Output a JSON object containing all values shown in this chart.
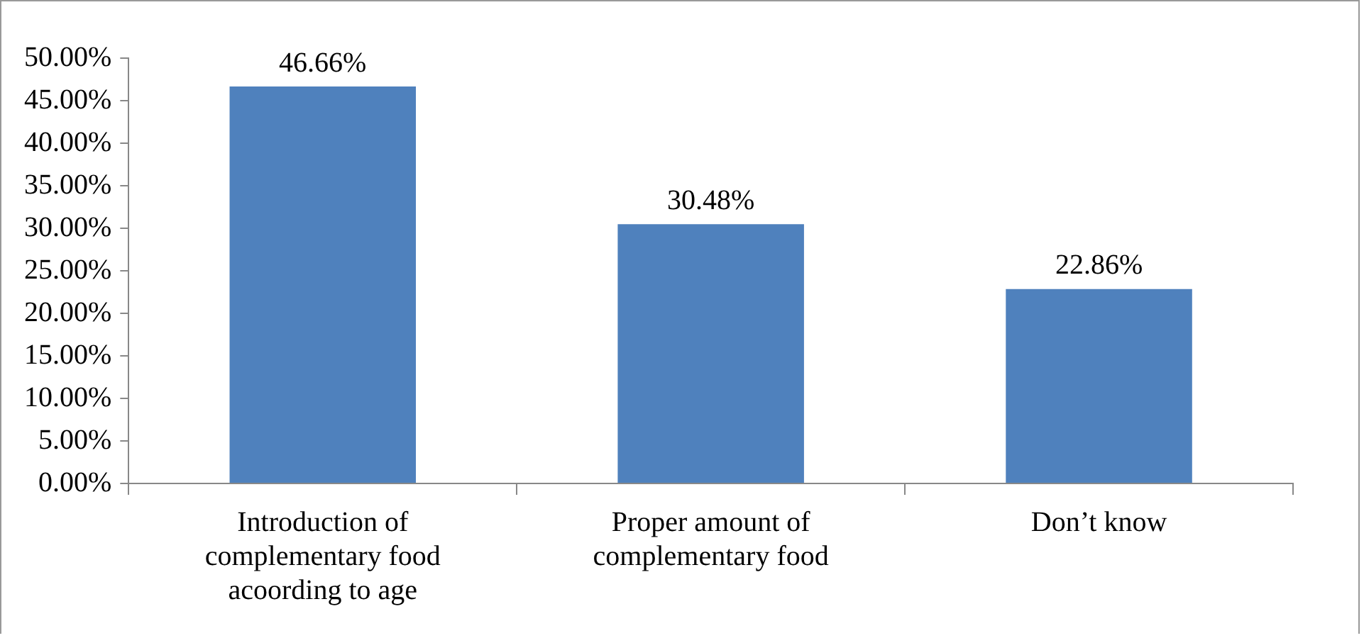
{
  "chart_data": {
    "type": "bar",
    "categories": [
      "Introduction of complementary food acoording to age",
      "Proper amount of complementary food",
      "Don’t know"
    ],
    "values": [
      46.66,
      30.48,
      22.86
    ],
    "value_labels": [
      "46.66%",
      "30.48%",
      "22.86%"
    ],
    "color": "#4f81bd",
    "ylim": [
      0,
      50
    ],
    "yticks": [
      {
        "value": 0,
        "label": "0.00%"
      },
      {
        "value": 5,
        "label": "5.00%"
      },
      {
        "value": 10,
        "label": "10.00%"
      },
      {
        "value": 15,
        "label": "15.00%"
      },
      {
        "value": 20,
        "label": "20.00%"
      },
      {
        "value": 25,
        "label": "25.00%"
      },
      {
        "value": 30,
        "label": "30.00%"
      },
      {
        "value": 35,
        "label": "35.00%"
      },
      {
        "value": 40,
        "label": "40.00%"
      },
      {
        "value": 45,
        "label": "45.00%"
      },
      {
        "value": 50,
        "label": "50.00%"
      }
    ],
    "grid": false,
    "legend": false
  }
}
